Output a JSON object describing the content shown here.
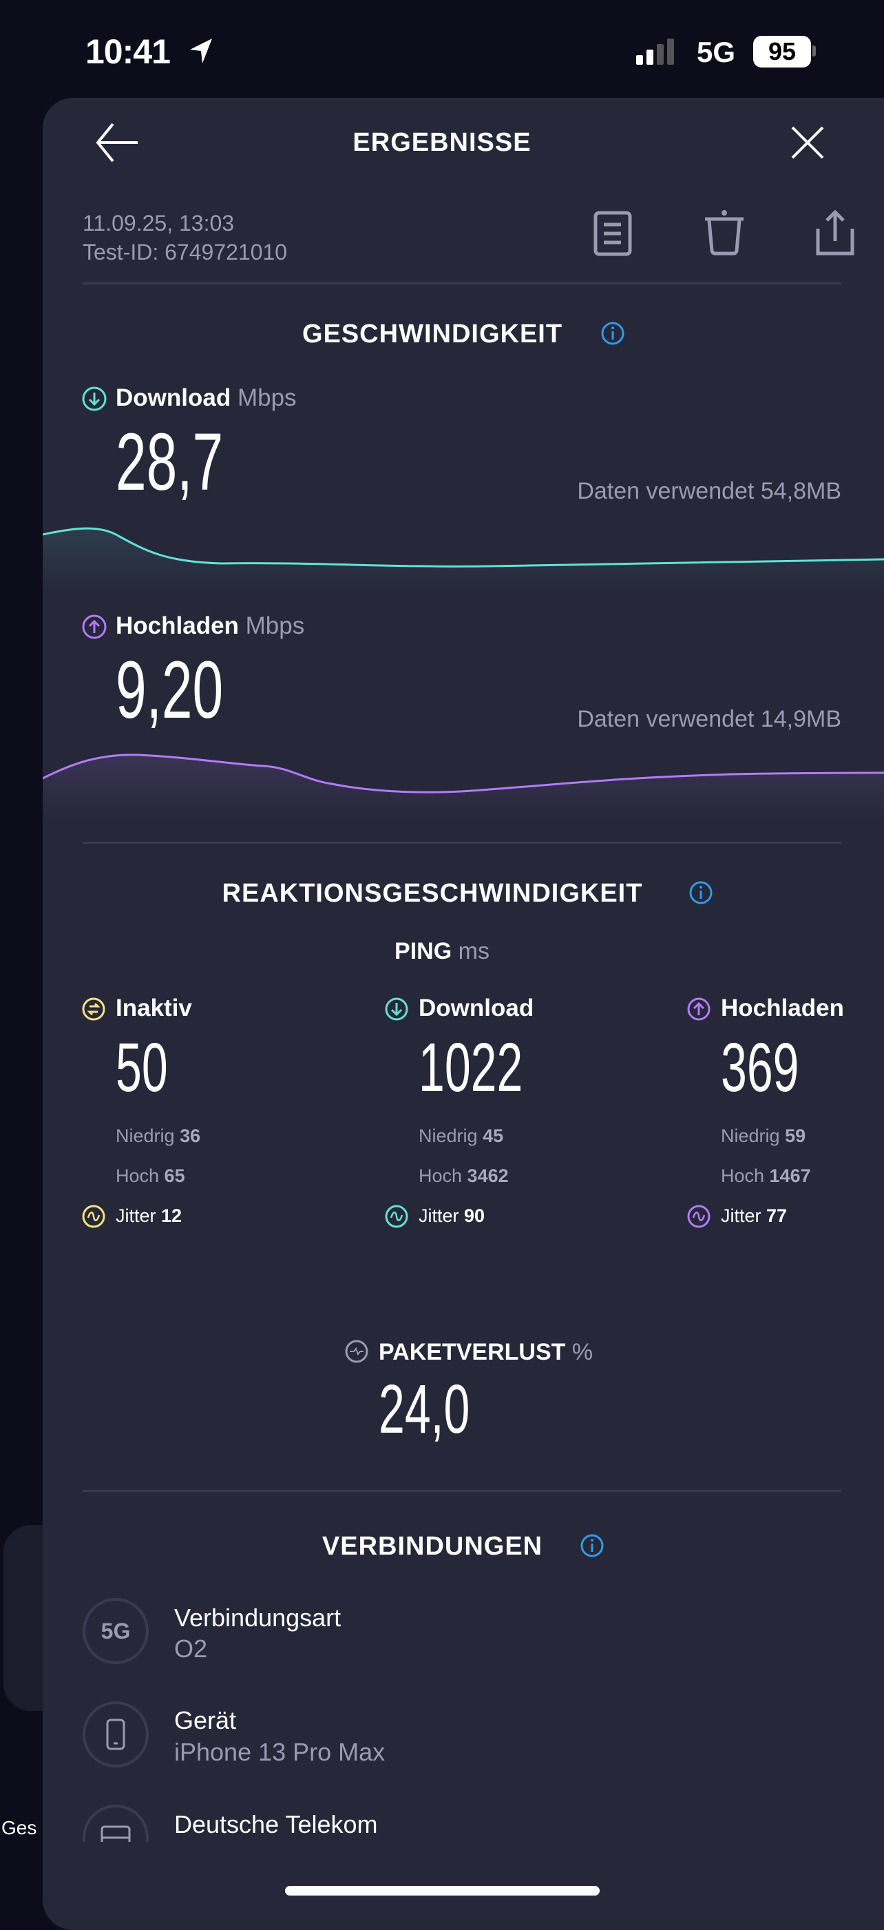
{
  "status_bar": {
    "time": "10:41",
    "network": "5G",
    "battery": "95",
    "icons": [
      "location-arrow-icon",
      "signal-icon",
      "battery-icon"
    ]
  },
  "header": {
    "title": "ERGEBNISSE",
    "back_icon": "arrow-left-icon",
    "close_icon": "close-icon"
  },
  "meta": {
    "date": "11.09.25, 13:03",
    "test_id": "Test-ID: 6749721010",
    "actions": [
      "document-icon",
      "trash-icon",
      "share-icon"
    ]
  },
  "speed": {
    "title": "GESCHWINDIGKEIT",
    "download": {
      "label": "Download",
      "unit": "Mbps",
      "value": "28,7",
      "data_used": "Daten verwendet 54,8MB"
    },
    "upload": {
      "label": "Hochladen",
      "unit": "Mbps",
      "value": "9,20",
      "data_used": "Daten verwendet 14,9MB"
    }
  },
  "latency": {
    "title": "REAKTIONSGESCHWINDIGKEIT",
    "ping_label": "PING",
    "ping_unit": "ms",
    "columns": [
      {
        "label": "Inaktiv",
        "value": "50",
        "low_label": "Niedrig",
        "low": "36",
        "high_label": "Hoch",
        "high": "65",
        "jitter_label": "Jitter",
        "jitter": "12",
        "color": "#f3e27e"
      },
      {
        "label": "Download",
        "value": "1022",
        "low_label": "Niedrig",
        "low": "45",
        "high_label": "Hoch",
        "high": "3462",
        "jitter_label": "Jitter",
        "jitter": "90",
        "color": "#5fe3d6"
      },
      {
        "label": "Hochladen",
        "value": "369",
        "low_label": "Niedrig",
        "low": "59",
        "high_label": "Hoch",
        "high": "1467",
        "jitter_label": "Jitter",
        "jitter": "77",
        "color": "#b07cf5"
      }
    ],
    "packet_loss": {
      "label": "PAKETVERLUST",
      "unit": "%",
      "value": "24,0"
    }
  },
  "connections": {
    "title": "VERBINDUNGEN",
    "items": [
      {
        "icon_text": "5G",
        "label": "Verbindungsart",
        "value": "O2"
      },
      {
        "icon": "phone-icon",
        "label": "Gerät",
        "value": "iPhone 13 Pro Max"
      },
      {
        "icon": "server-icon",
        "label": "Deutsche Telekom"
      }
    ]
  },
  "background": {
    "partial_text": "Ges"
  },
  "colors": {
    "cyan": "#5fe3d6",
    "purple": "#b07cf5",
    "yellow": "#f3e27e",
    "info": "#2f9be8",
    "sheet": "#262739"
  }
}
